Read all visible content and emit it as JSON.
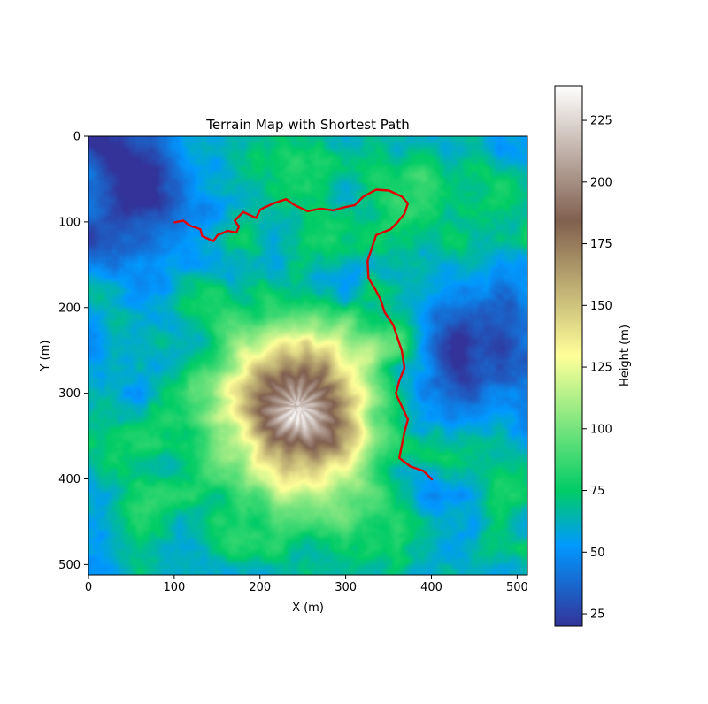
{
  "chart_data": {
    "type": "heatmap",
    "title": "Terrain Map with Shortest Path",
    "xlabel": "X (m)",
    "ylabel": "Y (m)",
    "xlim": [
      0,
      511
    ],
    "ylim": [
      511,
      0
    ],
    "x_ticks": [
      0,
      100,
      200,
      300,
      400,
      500
    ],
    "y_ticks": [
      0,
      100,
      200,
      300,
      400,
      500
    ],
    "colorbar": {
      "label": "Height (m)",
      "range": [
        20,
        239
      ],
      "ticks": [
        25,
        50,
        75,
        100,
        125,
        150,
        175,
        200,
        225
      ],
      "colormap": "terrain"
    },
    "features": {
      "peak": {
        "x": 245,
        "y": 315,
        "height": 239
      },
      "lowlands": [
        {
          "x": 60,
          "y": 50,
          "height": 30
        },
        {
          "x": 490,
          "y": 260,
          "height": 22
        }
      ]
    },
    "path": {
      "color": "#e00000",
      "points": [
        [
          100,
          100
        ],
        [
          110,
          98
        ],
        [
          118,
          104
        ],
        [
          130,
          108
        ],
        [
          132,
          116
        ],
        [
          145,
          122
        ],
        [
          150,
          115
        ],
        [
          162,
          110
        ],
        [
          172,
          112
        ],
        [
          175,
          105
        ],
        [
          170,
          98
        ],
        [
          180,
          88
        ],
        [
          195,
          95
        ],
        [
          200,
          85
        ],
        [
          215,
          78
        ],
        [
          230,
          73
        ],
        [
          240,
          80
        ],
        [
          255,
          87
        ],
        [
          270,
          84
        ],
        [
          285,
          86
        ],
        [
          300,
          82
        ],
        [
          310,
          80
        ],
        [
          320,
          70
        ],
        [
          335,
          62
        ],
        [
          350,
          63
        ],
        [
          365,
          70
        ],
        [
          372,
          78
        ],
        [
          368,
          90
        ],
        [
          360,
          100
        ],
        [
          352,
          108
        ],
        [
          335,
          115
        ],
        [
          330,
          130
        ],
        [
          325,
          145
        ],
        [
          326,
          165
        ],
        [
          335,
          180
        ],
        [
          340,
          190
        ],
        [
          345,
          205
        ],
        [
          355,
          220
        ],
        [
          360,
          235
        ],
        [
          365,
          250
        ],
        [
          368,
          270
        ],
        [
          362,
          285
        ],
        [
          358,
          300
        ],
        [
          365,
          315
        ],
        [
          372,
          330
        ],
        [
          368,
          345
        ],
        [
          365,
          360
        ],
        [
          362,
          375
        ],
        [
          375,
          385
        ],
        [
          390,
          390
        ],
        [
          400,
          400
        ]
      ]
    }
  }
}
